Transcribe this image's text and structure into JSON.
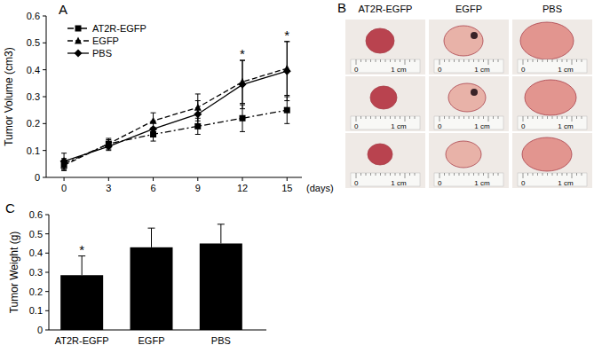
{
  "chart_data": [
    {
      "type": "line",
      "title": "A",
      "xlabel": "(days)",
      "ylabel": "Tumor Volume (cm3)",
      "x": [
        0,
        3,
        6,
        9,
        12,
        15
      ],
      "xlim": [
        -1.2,
        16
      ],
      "xticks": [
        0,
        3,
        6,
        9,
        12,
        15
      ],
      "ylim": [
        0,
        0.6
      ],
      "yticks": [
        0,
        0.1,
        0.2,
        0.3,
        0.4,
        0.5,
        0.6
      ],
      "legend": "upper left",
      "series": [
        {
          "name": "AT2R-EGFP",
          "color": "#000000",
          "marker": "square",
          "line_style": "dashdot",
          "values": [
            0.05,
            0.125,
            0.16,
            0.19,
            0.22,
            0.25
          ],
          "errors": [
            0.02,
            0.015,
            0.025,
            0.03,
            0.05,
            0.05
          ]
        },
        {
          "name": "EGFP",
          "color": "#000000",
          "marker": "triangle",
          "line_style": "dashed",
          "values": [
            0.045,
            0.125,
            0.21,
            0.26,
            0.355,
            0.405
          ],
          "errors": [
            0.02,
            0.02,
            0.03,
            0.05,
            0.08,
            0.1
          ]
        },
        {
          "name": "PBS",
          "color": "#000000",
          "marker": "diamond",
          "line_style": "solid",
          "values": [
            0.06,
            0.115,
            0.18,
            0.235,
            0.345,
            0.395
          ],
          "errors": [
            0.03,
            0.015,
            0.03,
            0.05,
            0.09,
            0.11
          ]
        }
      ],
      "annotations": [
        {
          "x": 12,
          "text": "*"
        },
        {
          "x": 15,
          "text": "*"
        }
      ]
    },
    {
      "type": "bar",
      "title": "C",
      "ylabel": "Tumor Weight (g)",
      "categories": [
        "AT2R-EGFP",
        "EGFP",
        "PBS"
      ],
      "values": [
        0.285,
        0.43,
        0.45
      ],
      "errors": [
        0.1,
        0.1,
        0.1
      ],
      "color": "#000000",
      "ylim": [
        0,
        0.6
      ],
      "yticks": [
        0,
        0.1,
        0.2,
        0.3,
        0.4,
        0.5,
        0.6
      ],
      "annotations": [
        {
          "category": "AT2R-EGFP",
          "text": "*"
        }
      ]
    }
  ],
  "photos": {
    "title": "B",
    "columns": [
      "AT2R-EGFP",
      "EGFP",
      "PBS"
    ],
    "rows": 3,
    "ruler_labels": [
      "0",
      "1 cm"
    ]
  }
}
